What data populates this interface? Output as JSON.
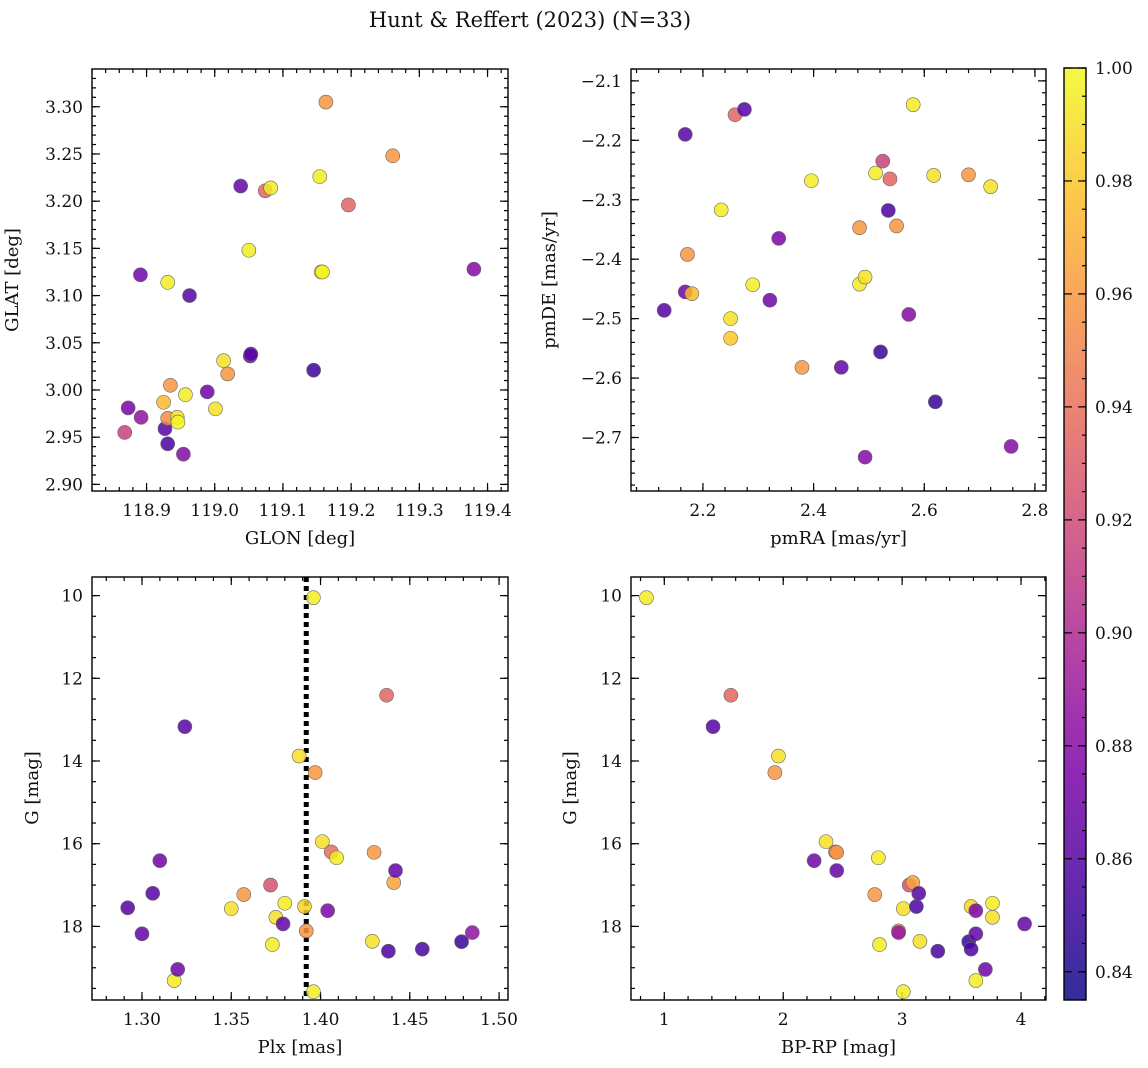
{
  "figure": {
    "title": "Hunt & Reffert (2023) (N=33)"
  },
  "colorbar": {
    "cmap": "plasma",
    "range": [
      0.835,
      1.0
    ],
    "ticks": [
      0.84,
      0.86,
      0.88,
      0.9,
      0.92,
      0.94,
      0.96,
      0.98,
      1.0
    ],
    "tick_labels": [
      "0.84",
      "0.86",
      "0.88",
      "0.90",
      "0.92",
      "0.94",
      "0.96",
      "0.98",
      "1.00"
    ]
  },
  "chart_data": [
    {
      "type": "scatter",
      "name": "spatial",
      "xlabel": "GLON [deg]",
      "ylabel": "GLAT [deg]",
      "xlim": [
        118.82,
        119.43
      ],
      "ylim": [
        2.893,
        3.34
      ],
      "xticks": [
        118.9,
        119.0,
        119.1,
        119.2,
        119.3,
        119.4
      ],
      "xtick_labels": [
        "118.9",
        "119.0",
        "119.1",
        "119.2",
        "119.3",
        "119.4"
      ],
      "yticks": [
        2.9,
        2.95,
        3.0,
        3.05,
        3.1,
        3.15,
        3.2,
        3.25,
        3.3
      ],
      "ytick_labels": [
        "2.90",
        "2.95",
        "3.00",
        "3.05",
        "3.10",
        "3.15",
        "3.20",
        "3.25",
        "3.30"
      ],
      "points": [
        {
          "x": 118.868,
          "y": 2.955,
          "c": 0.915
        },
        {
          "x": 118.873,
          "y": 2.981,
          "c": 0.875
        },
        {
          "x": 118.892,
          "y": 2.971,
          "c": 0.885
        },
        {
          "x": 118.891,
          "y": 3.122,
          "c": 0.87
        },
        {
          "x": 118.925,
          "y": 2.987,
          "c": 0.975
        },
        {
          "x": 118.927,
          "y": 2.959,
          "c": 0.86
        },
        {
          "x": 118.931,
          "y": 3.114,
          "c": 0.995
        },
        {
          "x": 118.931,
          "y": 2.97,
          "c": 0.955
        },
        {
          "x": 118.931,
          "y": 2.943,
          "c": 0.855
        },
        {
          "x": 118.935,
          "y": 3.005,
          "c": 0.96
        },
        {
          "x": 118.945,
          "y": 2.971,
          "c": 0.99
        },
        {
          "x": 118.946,
          "y": 2.966,
          "c": 0.998
        },
        {
          "x": 118.954,
          "y": 2.932,
          "c": 0.88
        },
        {
          "x": 118.957,
          "y": 2.995,
          "c": 0.995
        },
        {
          "x": 118.963,
          "y": 3.1,
          "c": 0.86
        },
        {
          "x": 118.989,
          "y": 2.998,
          "c": 0.87
        },
        {
          "x": 119.001,
          "y": 2.98,
          "c": 0.99
        },
        {
          "x": 119.013,
          "y": 3.031,
          "c": 0.99
        },
        {
          "x": 119.019,
          "y": 3.017,
          "c": 0.96
        },
        {
          "x": 119.038,
          "y": 3.216,
          "c": 0.865
        },
        {
          "x": 119.05,
          "y": 3.148,
          "c": 0.995
        },
        {
          "x": 119.052,
          "y": 3.036,
          "c": 0.87
        },
        {
          "x": 119.053,
          "y": 3.038,
          "c": 0.86
        },
        {
          "x": 119.074,
          "y": 3.211,
          "c": 0.935
        },
        {
          "x": 119.082,
          "y": 3.214,
          "c": 0.995
        },
        {
          "x": 119.145,
          "y": 3.021,
          "c": 0.85
        },
        {
          "x": 119.154,
          "y": 3.226,
          "c": 0.995
        },
        {
          "x": 119.156,
          "y": 3.125,
          "c": 0.99
        },
        {
          "x": 119.158,
          "y": 3.125,
          "c": 0.998
        },
        {
          "x": 119.163,
          "y": 3.305,
          "c": 0.96
        },
        {
          "x": 119.196,
          "y": 3.196,
          "c": 0.935
        },
        {
          "x": 119.261,
          "y": 3.248,
          "c": 0.96
        },
        {
          "x": 119.38,
          "y": 3.128,
          "c": 0.88
        }
      ]
    },
    {
      "type": "scatter",
      "name": "proper-motion",
      "xlabel": "pmRA [mas/yr]",
      "ylabel": "pmDE [mas/yr]",
      "xlim": [
        2.07,
        2.82
      ],
      "ylim": [
        -2.79,
        -2.08
      ],
      "xticks": [
        2.2,
        2.4,
        2.6,
        2.8
      ],
      "xtick_labels": [
        "2.2",
        "2.4",
        "2.6",
        "2.8"
      ],
      "yticks": [
        -2.1,
        -2.2,
        -2.3,
        -2.4,
        -2.5,
        -2.6,
        -2.7
      ],
      "ytick_labels": [
        "−2.1",
        "−2.2",
        "−2.3",
        "−2.4",
        "−2.5",
        "−2.6",
        "−2.7"
      ],
      "points": [
        {
          "x": 2.13,
          "y": -2.486,
          "c": 0.86
        },
        {
          "x": 2.168,
          "y": -2.455,
          "c": 0.87
        },
        {
          "x": 2.168,
          "y": -2.19,
          "c": 0.86
        },
        {
          "x": 2.172,
          "y": -2.392,
          "c": 0.96
        },
        {
          "x": 2.18,
          "y": -2.458,
          "c": 0.975
        },
        {
          "x": 2.233,
          "y": -2.317,
          "c": 0.995
        },
        {
          "x": 2.25,
          "y": -2.5,
          "c": 0.99
        },
        {
          "x": 2.25,
          "y": -2.533,
          "c": 0.98
        },
        {
          "x": 2.258,
          "y": -2.157,
          "c": 0.935
        },
        {
          "x": 2.275,
          "y": -2.148,
          "c": 0.86
        },
        {
          "x": 2.29,
          "y": -2.443,
          "c": 0.995
        },
        {
          "x": 2.321,
          "y": -2.469,
          "c": 0.87
        },
        {
          "x": 2.337,
          "y": -2.365,
          "c": 0.875
        },
        {
          "x": 2.379,
          "y": -2.582,
          "c": 0.96
        },
        {
          "x": 2.396,
          "y": -2.268,
          "c": 0.995
        },
        {
          "x": 2.45,
          "y": -2.582,
          "c": 0.865
        },
        {
          "x": 2.483,
          "y": -2.347,
          "c": 0.96
        },
        {
          "x": 2.483,
          "y": -2.442,
          "c": 0.995
        },
        {
          "x": 2.493,
          "y": -2.43,
          "c": 0.99
        },
        {
          "x": 2.493,
          "y": -2.733,
          "c": 0.88
        },
        {
          "x": 2.512,
          "y": -2.255,
          "c": 0.995
        },
        {
          "x": 2.521,
          "y": -2.556,
          "c": 0.85
        },
        {
          "x": 2.525,
          "y": -2.235,
          "c": 0.915
        },
        {
          "x": 2.535,
          "y": -2.318,
          "c": 0.855
        },
        {
          "x": 2.538,
          "y": -2.265,
          "c": 0.935
        },
        {
          "x": 2.55,
          "y": -2.344,
          "c": 0.96
        },
        {
          "x": 2.572,
          "y": -2.493,
          "c": 0.88
        },
        {
          "x": 2.58,
          "y": -2.14,
          "c": 0.995
        },
        {
          "x": 2.617,
          "y": -2.259,
          "c": 0.99
        },
        {
          "x": 2.62,
          "y": -2.64,
          "c": 0.85
        },
        {
          "x": 2.68,
          "y": -2.258,
          "c": 0.96
        },
        {
          "x": 2.72,
          "y": -2.278,
          "c": 0.99
        },
        {
          "x": 2.757,
          "y": -2.715,
          "c": 0.88
        }
      ]
    },
    {
      "type": "scatter",
      "name": "parallax-magnitude",
      "xlabel": "Plx [mas]",
      "ylabel": "G [mag]",
      "xlim": [
        1.272,
        1.505
      ],
      "ylim": [
        19.78,
        9.55
      ],
      "xticks": [
        1.3,
        1.35,
        1.4,
        1.45,
        1.5
      ],
      "xtick_labels": [
        "1.30",
        "1.35",
        "1.40",
        "1.45",
        "1.50"
      ],
      "yticks": [
        10,
        12,
        14,
        16,
        18
      ],
      "ytick_labels": [
        "10",
        "12",
        "14",
        "16",
        "18"
      ],
      "vline": 1.392,
      "points": [
        {
          "x": 1.292,
          "y": 17.55,
          "c": 0.86
        },
        {
          "x": 1.3,
          "y": 18.18,
          "c": 0.865
        },
        {
          "x": 1.306,
          "y": 17.2,
          "c": 0.86
        },
        {
          "x": 1.31,
          "y": 16.41,
          "c": 0.87
        },
        {
          "x": 1.318,
          "y": 19.31,
          "c": 0.995
        },
        {
          "x": 1.32,
          "y": 19.04,
          "c": 0.87
        },
        {
          "x": 1.324,
          "y": 13.17,
          "c": 0.86
        },
        {
          "x": 1.35,
          "y": 17.57,
          "c": 0.99
        },
        {
          "x": 1.357,
          "y": 17.23,
          "c": 0.96
        },
        {
          "x": 1.372,
          "y": 17.0,
          "c": 0.925
        },
        {
          "x": 1.373,
          "y": 18.44,
          "c": 0.995
        },
        {
          "x": 1.375,
          "y": 17.78,
          "c": 0.99
        },
        {
          "x": 1.379,
          "y": 17.94,
          "c": 0.865
        },
        {
          "x": 1.38,
          "y": 17.44,
          "c": 0.995
        },
        {
          "x": 1.388,
          "y": 13.88,
          "c": 0.99
        },
        {
          "x": 1.391,
          "y": 17.52,
          "c": 0.985
        },
        {
          "x": 1.392,
          "y": 18.11,
          "c": 0.96
        },
        {
          "x": 1.396,
          "y": 10.05,
          "c": 0.995
        },
        {
          "x": 1.396,
          "y": 19.58,
          "c": 0.995
        },
        {
          "x": 1.397,
          "y": 14.28,
          "c": 0.96
        },
        {
          "x": 1.401,
          "y": 15.95,
          "c": 0.99
        },
        {
          "x": 1.404,
          "y": 17.62,
          "c": 0.875
        },
        {
          "x": 1.406,
          "y": 16.2,
          "c": 0.94
        },
        {
          "x": 1.409,
          "y": 16.34,
          "c": 0.995
        },
        {
          "x": 1.429,
          "y": 18.36,
          "c": 0.99
        },
        {
          "x": 1.43,
          "y": 16.21,
          "c": 0.96
        },
        {
          "x": 1.437,
          "y": 12.41,
          "c": 0.935
        },
        {
          "x": 1.438,
          "y": 18.6,
          "c": 0.855
        },
        {
          "x": 1.441,
          "y": 16.94,
          "c": 0.965
        },
        {
          "x": 1.442,
          "y": 16.65,
          "c": 0.865
        },
        {
          "x": 1.457,
          "y": 18.55,
          "c": 0.855
        },
        {
          "x": 1.479,
          "y": 18.37,
          "c": 0.85
        },
        {
          "x": 1.485,
          "y": 18.15,
          "c": 0.885
        }
      ]
    },
    {
      "type": "scatter",
      "name": "color-magnitude",
      "xlabel": "BP-RP [mag]",
      "ylabel": "G [mag]",
      "xlim": [
        0.72,
        4.21
      ],
      "ylim": [
        19.78,
        9.55
      ],
      "xticks": [
        1,
        2,
        3,
        4
      ],
      "xtick_labels": [
        "1",
        "2",
        "3",
        "4"
      ],
      "yticks": [
        10,
        12,
        14,
        16,
        18
      ],
      "ytick_labels": [
        "10",
        "12",
        "14",
        "16",
        "18"
      ],
      "points": [
        {
          "x": 0.85,
          "y": 10.05,
          "c": 0.995
        },
        {
          "x": 1.41,
          "y": 13.17,
          "c": 0.86
        },
        {
          "x": 1.56,
          "y": 12.41,
          "c": 0.935
        },
        {
          "x": 1.93,
          "y": 14.28,
          "c": 0.96
        },
        {
          "x": 1.96,
          "y": 13.88,
          "c": 0.99
        },
        {
          "x": 2.26,
          "y": 16.41,
          "c": 0.87
        },
        {
          "x": 2.36,
          "y": 15.95,
          "c": 0.99
        },
        {
          "x": 2.44,
          "y": 16.2,
          "c": 0.94
        },
        {
          "x": 2.45,
          "y": 16.21,
          "c": 0.96
        },
        {
          "x": 2.45,
          "y": 16.65,
          "c": 0.865
        },
        {
          "x": 2.77,
          "y": 17.23,
          "c": 0.96
        },
        {
          "x": 2.8,
          "y": 16.34,
          "c": 0.995
        },
        {
          "x": 2.81,
          "y": 18.44,
          "c": 0.995
        },
        {
          "x": 2.97,
          "y": 18.11,
          "c": 0.96
        },
        {
          "x": 2.97,
          "y": 18.15,
          "c": 0.885
        },
        {
          "x": 3.01,
          "y": 17.57,
          "c": 0.99
        },
        {
          "x": 3.01,
          "y": 19.58,
          "c": 0.995
        },
        {
          "x": 3.06,
          "y": 17.0,
          "c": 0.925
        },
        {
          "x": 3.09,
          "y": 16.94,
          "c": 0.965
        },
        {
          "x": 3.12,
          "y": 17.52,
          "c": 0.855
        },
        {
          "x": 3.14,
          "y": 17.2,
          "c": 0.86
        },
        {
          "x": 3.15,
          "y": 18.36,
          "c": 0.99
        },
        {
          "x": 3.3,
          "y": 18.6,
          "c": 0.855
        },
        {
          "x": 3.56,
          "y": 18.37,
          "c": 0.85
        },
        {
          "x": 3.58,
          "y": 17.52,
          "c": 0.985
        },
        {
          "x": 3.58,
          "y": 18.55,
          "c": 0.855
        },
        {
          "x": 3.62,
          "y": 17.62,
          "c": 0.875
        },
        {
          "x": 3.62,
          "y": 18.18,
          "c": 0.865
        },
        {
          "x": 3.62,
          "y": 19.31,
          "c": 0.995
        },
        {
          "x": 3.7,
          "y": 19.04,
          "c": 0.87
        },
        {
          "x": 3.76,
          "y": 17.44,
          "c": 0.995
        },
        {
          "x": 3.76,
          "y": 17.78,
          "c": 0.99
        },
        {
          "x": 4.03,
          "y": 17.94,
          "c": 0.865
        }
      ]
    }
  ]
}
